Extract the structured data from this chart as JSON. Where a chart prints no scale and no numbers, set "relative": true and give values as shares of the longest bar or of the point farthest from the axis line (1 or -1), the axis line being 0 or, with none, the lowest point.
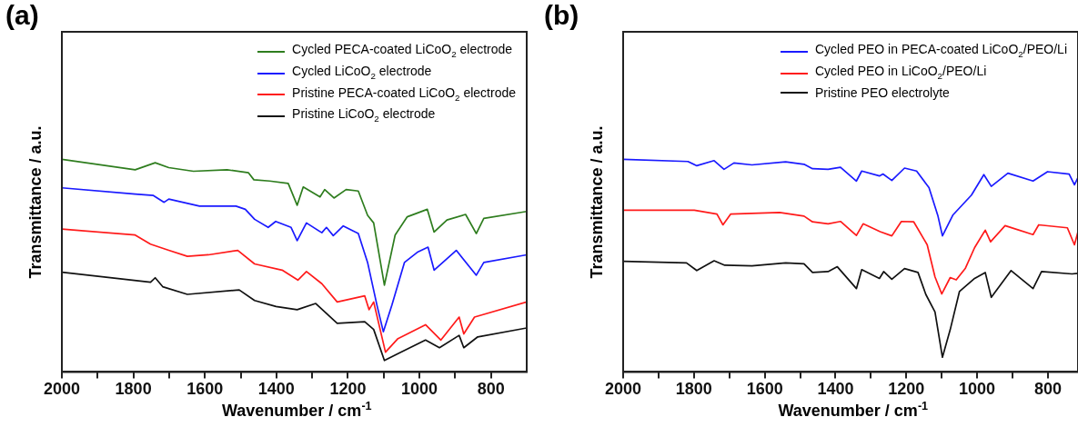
{
  "chart_data": [
    {
      "type": "line",
      "title": "(a)",
      "xlabel": "Wavenumber / cm$^{-1}$",
      "ylabel": "Transmittance / a.u.",
      "relative": true,
      "xlim": [
        2000,
        700
      ],
      "xticks": [
        2000,
        {
          "value": 1900,
          "label": null
        },
        1800,
        {
          "value": 1700,
          "label": null
        },
        1600,
        {
          "value": 1500,
          "label": null
        },
        1400,
        {
          "value": 1300,
          "label": null
        },
        1200,
        {
          "value": 1100,
          "label": null
        },
        1000,
        {
          "value": 900,
          "label": null
        },
        800
      ],
      "legend": "top right",
      "marker": "none",
      "line_style": "solid",
      "series": [
        {
          "name": "Cycled PECA-coated LiCoO$_{2}$ electrode",
          "color": "#2e7d1e",
          "x": [
            2000,
            1795,
            1739,
            1701,
            1632,
            1538,
            1478,
            1463,
            1419,
            1367,
            1342,
            1325,
            1278,
            1265,
            1239,
            1205,
            1171,
            1145,
            1128,
            1098,
            1068,
            1034,
            978,
            959,
            923,
            871,
            841,
            820,
            700
          ],
          "values": [
            1.0,
            0.951,
            0.984,
            0.961,
            0.944,
            0.951,
            0.937,
            0.904,
            0.898,
            0.887,
            0.784,
            0.87,
            0.823,
            0.858,
            0.818,
            0.858,
            0.851,
            0.737,
            0.701,
            0.408,
            0.644,
            0.73,
            0.765,
            0.658,
            0.715,
            0.741,
            0.651,
            0.722,
            0.755
          ]
        },
        {
          "name": "Cycled LiCoO$_{2}$ electrode",
          "color": "#1a1aff",
          "x": [
            2000,
            1795,
            1744,
            1714,
            1701,
            1615,
            1513,
            1487,
            1461,
            1423,
            1402,
            1359,
            1342,
            1316,
            1273,
            1260,
            1241,
            1213,
            1171,
            1145,
            1119,
            1101,
            1077,
            1042,
            1004,
            976,
            959,
            897,
            841,
            820,
            700
          ],
          "values": [
            0.866,
            0.837,
            0.83,
            0.798,
            0.813,
            0.78,
            0.78,
            0.765,
            0.718,
            0.68,
            0.708,
            0.68,
            0.618,
            0.701,
            0.655,
            0.68,
            0.641,
            0.687,
            0.651,
            0.515,
            0.315,
            0.189,
            0.315,
            0.515,
            0.565,
            0.587,
            0.479,
            0.572,
            0.455,
            0.515,
            0.551
          ]
        },
        {
          "name": "Pristine PECA-coated LiCoO$_{2}$ electrode",
          "color": "#ff1a1a",
          "x": [
            2000,
            1795,
            1752,
            1701,
            1649,
            1590,
            1508,
            1461,
            1384,
            1340,
            1316,
            1273,
            1230,
            1153,
            1141,
            1128,
            1095,
            1060,
            983,
            940,
            889,
            876,
            846,
            700
          ],
          "values": [
            0.672,
            0.644,
            0.601,
            0.572,
            0.544,
            0.551,
            0.572,
            0.508,
            0.479,
            0.432,
            0.472,
            0.415,
            0.329,
            0.358,
            0.293,
            0.329,
            0.093,
            0.157,
            0.222,
            0.15,
            0.258,
            0.179,
            0.258,
            0.329
          ]
        },
        {
          "name": "Pristine LiCoO$_{2}$ electrode",
          "color": "#111111",
          "x": [
            2000,
            1752,
            1739,
            1718,
            1649,
            1504,
            1461,
            1401,
            1342,
            1290,
            1230,
            1153,
            1128,
            1098,
            1060,
            983,
            944,
            889,
            876,
            837,
            700
          ],
          "values": [
            0.469,
            0.422,
            0.443,
            0.401,
            0.365,
            0.386,
            0.336,
            0.308,
            0.293,
            0.322,
            0.229,
            0.236,
            0.2,
            0.054,
            0.086,
            0.15,
            0.114,
            0.172,
            0.114,
            0.165,
            0.207
          ]
        }
      ]
    },
    {
      "type": "line",
      "title": "(b)",
      "xlabel": "Wavenumber / cm$^{-1}$",
      "ylabel": "Transmittance / a.u.",
      "relative": true,
      "xlim": [
        2000,
        715
      ],
      "xticks": [
        2000,
        {
          "value": 1900,
          "label": null
        },
        1800,
        {
          "value": 1700,
          "label": null
        },
        1600,
        {
          "value": 1500,
          "label": null
        },
        1400,
        {
          "value": 1300,
          "label": null
        },
        1200,
        {
          "value": 1100,
          "label": null
        },
        1000,
        {
          "value": 900,
          "label": null
        },
        800
      ],
      "legend": "top right",
      "marker": "none",
      "line_style": "solid",
      "series": [
        {
          "name": "Cycled PEO in PECA-coated LiCoO$_{2}$/PEO/Li",
          "color": "#1a1aff",
          "x": [
            2000,
            1817,
            1792,
            1743,
            1715,
            1687,
            1636,
            1541,
            1489,
            1465,
            1421,
            1386,
            1341,
            1326,
            1276,
            1266,
            1241,
            1205,
            1171,
            1136,
            1111,
            1098,
            1068,
            1016,
            981,
            960,
            913,
            842,
            801,
            740,
            725,
            715
          ],
          "values": [
            1.0,
            0.99,
            0.97,
            0.994,
            0.953,
            0.983,
            0.974,
            0.988,
            0.977,
            0.956,
            0.953,
            0.963,
            0.898,
            0.945,
            0.922,
            0.931,
            0.901,
            0.959,
            0.945,
            0.867,
            0.736,
            0.64,
            0.739,
            0.832,
            0.928,
            0.873,
            0.935,
            0.898,
            0.942,
            0.931,
            0.88,
            0.915
          ]
        },
        {
          "name": "Cycled PEO in LiCoO$_{2}$/PEO/Li",
          "color": "#ff1a1a",
          "x": [
            2000,
            1799,
            1735,
            1718,
            1696,
            1558,
            1489,
            1465,
            1421,
            1386,
            1341,
            1322,
            1274,
            1241,
            1214,
            1179,
            1141,
            1119,
            1100,
            1076,
            1059,
            1033,
            1007,
            977,
            962,
            921,
            842,
            826,
            745,
            725,
            715
          ],
          "values": [
            0.761,
            0.761,
            0.743,
            0.692,
            0.743,
            0.75,
            0.733,
            0.706,
            0.697,
            0.708,
            0.642,
            0.697,
            0.66,
            0.64,
            0.708,
            0.706,
            0.598,
            0.447,
            0.367,
            0.444,
            0.433,
            0.488,
            0.585,
            0.667,
            0.612,
            0.688,
            0.646,
            0.692,
            0.678,
            0.598,
            0.66
          ]
        },
        {
          "name": "Pristine PEO electrolyte",
          "color": "#111111",
          "x": [
            2000,
            1821,
            1792,
            1743,
            1713,
            1636,
            1541,
            1489,
            1465,
            1421,
            1395,
            1341,
            1326,
            1276,
            1264,
            1241,
            1205,
            1167,
            1145,
            1119,
            1098,
            1076,
            1050,
            1007,
            977,
            960,
            904,
            842,
            818,
            732,
            715
          ],
          "values": [
            0.52,
            0.513,
            0.477,
            0.523,
            0.502,
            0.499,
            0.513,
            0.509,
            0.468,
            0.472,
            0.495,
            0.392,
            0.481,
            0.44,
            0.472,
            0.436,
            0.486,
            0.468,
            0.365,
            0.282,
            0.069,
            0.199,
            0.378,
            0.44,
            0.468,
            0.351,
            0.477,
            0.392,
            0.472,
            0.461,
            0.464
          ]
        }
      ]
    }
  ]
}
